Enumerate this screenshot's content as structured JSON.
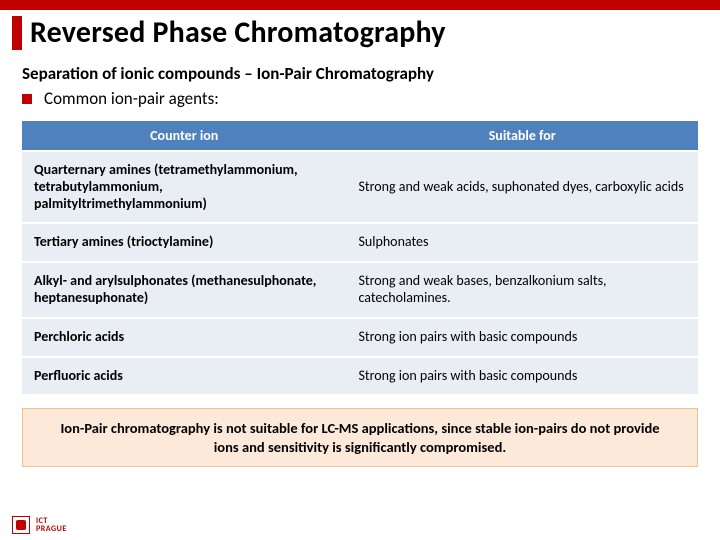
{
  "colors": {
    "accent_red": "#c00000",
    "table_header_bg": "#4f81bd",
    "table_header_fg": "#ffffff",
    "table_row_bg": "#e9edf4",
    "warn_bg": "#fde9d9",
    "warn_border": "#f6c28b"
  },
  "title": "Reversed Phase Chromatography",
  "subtitle": "Separation of ionic compounds – Ion-Pair Chromatography",
  "bullet": "Common ion-pair agents:",
  "table": {
    "columns": [
      "Counter ion",
      "Suitable for"
    ],
    "col_widths": [
      "48%",
      "52%"
    ],
    "rows": [
      [
        "Quarternary amines (tetramethylammonium, tetrabutylammonium, palmityltrimethylammonium)",
        "Strong and weak acids, suphonated dyes, carboxylic acids"
      ],
      [
        "Tertiary amines (trioctylamine)",
        "Sulphonates"
      ],
      [
        "Alkyl- and arylsulphonates (methanesulphonate, heptanesuphonate)",
        "Strong and weak bases, benzalkonium salts, catecholamines."
      ],
      [
        "Perchloric acids",
        "Strong ion pairs with basic compounds"
      ],
      [
        "Perfluoric acids",
        "Strong ion pairs with basic compounds"
      ]
    ],
    "header_fontsize": 14,
    "cell_fontsize": 14,
    "row_spacing": 2
  },
  "warning": "Ion-Pair chromatography is not suitable for LC-MS applications, since stable ion-pairs do not provide ions and sensitivity is significantly compromised.",
  "footer": {
    "line1": "ICT",
    "line2": "PRAGUE"
  }
}
